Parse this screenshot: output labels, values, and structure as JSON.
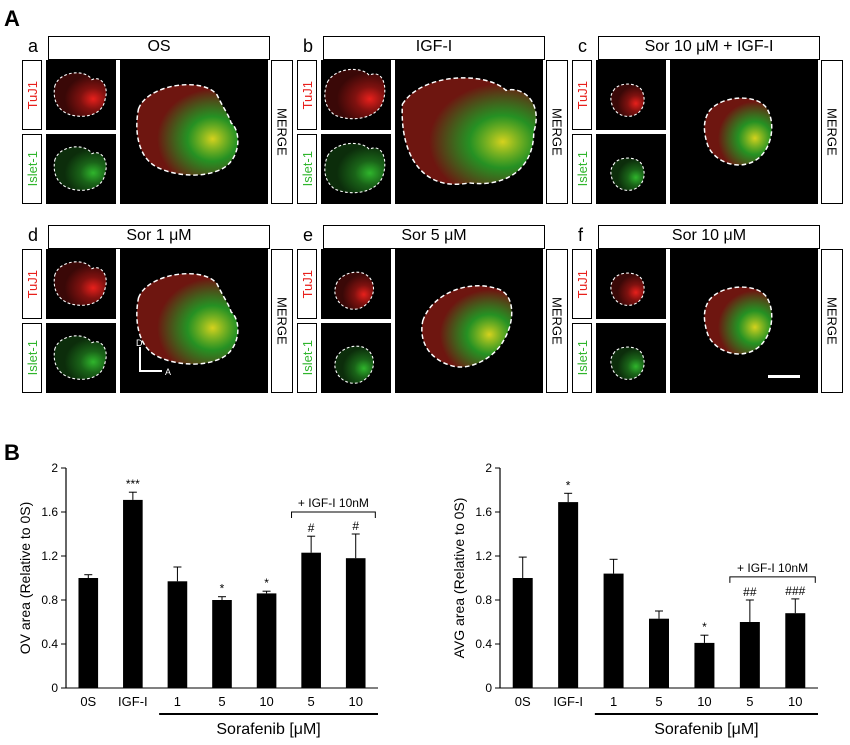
{
  "panel_a": {
    "letter": "A",
    "groups": [
      {
        "letter": "a",
        "title": "OS",
        "tuj1": "TuJ1",
        "islet": "Islet-1",
        "merge": "MERGE",
        "level": "os"
      },
      {
        "letter": "b",
        "title": "IGF-I",
        "tuj1": "TuJ1",
        "islet": "Islet-1",
        "merge": "MERGE",
        "level": "igf"
      },
      {
        "letter": "c",
        "title": "Sor 10 μM + IGF-I",
        "tuj1": "TuJ1",
        "islet": "Islet-1",
        "merge": "MERGE",
        "level": "small"
      },
      {
        "letter": "d",
        "title": "Sor 1 μM",
        "tuj1": "TuJ1",
        "islet": "Islet-1",
        "merge": "MERGE",
        "level": "os"
      },
      {
        "letter": "e",
        "title": "Sor 5 μM",
        "tuj1": "TuJ1",
        "islet": "Islet-1",
        "merge": "MERGE",
        "level": "mid"
      },
      {
        "letter": "f",
        "title": "Sor 10 μM",
        "tuj1": "TuJ1",
        "islet": "Islet-1",
        "merge": "MERGE",
        "level": "small"
      }
    ],
    "axis_d": "D",
    "axis_a": "A",
    "colors": {
      "tuj1": "#e8201c",
      "islet": "#2fb52c"
    }
  },
  "panel_b": {
    "letter": "B"
  },
  "chart_data": [
    {
      "type": "bar",
      "ylabel": "OV area (Relative to 0S)",
      "ylim": [
        0,
        2
      ],
      "yticks": [
        "0",
        "0.4",
        "0.8",
        "1.2",
        "1.6",
        "2"
      ],
      "categories": [
        "0S",
        "IGF-I",
        "1",
        "5",
        "10",
        "5",
        "10"
      ],
      "values": [
        1.0,
        1.71,
        0.97,
        0.8,
        0.86,
        1.23,
        1.18
      ],
      "errors": [
        0.03,
        0.07,
        0.13,
        0.03,
        0.02,
        0.15,
        0.22
      ],
      "annotations": [
        "",
        "***",
        "",
        "*",
        "*",
        "#",
        "#"
      ],
      "bracket_label": "+ IGF-I 10nM",
      "xgroup_label": "Sorafenib [μM]"
    },
    {
      "type": "bar",
      "ylabel": "AVG area (Relative to 0S)",
      "ylim": [
        0,
        2
      ],
      "yticks": [
        "0",
        "0.4",
        "0.8",
        "1.2",
        "1.6",
        "2"
      ],
      "categories": [
        "0S",
        "IGF-I",
        "1",
        "5",
        "10",
        "5",
        "10"
      ],
      "values": [
        1.0,
        1.69,
        1.04,
        0.63,
        0.41,
        0.6,
        0.68
      ],
      "errors": [
        0.19,
        0.08,
        0.13,
        0.07,
        0.07,
        0.2,
        0.13
      ],
      "annotations": [
        "",
        "*",
        "",
        "",
        "*",
        "##",
        "###"
      ],
      "bracket_label": "+ IGF-I 10nM",
      "xgroup_label": "Sorafenib [μM]"
    }
  ]
}
